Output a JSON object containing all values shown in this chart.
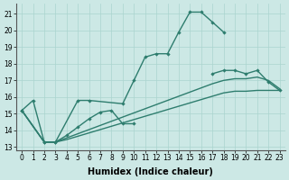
{
  "bg_color": "#cce8e5",
  "grid_color": "#aad4cf",
  "line_color": "#2e7d6e",
  "xlabel": "Humidex (Indice chaleur)",
  "xlim": [
    -0.5,
    23.5
  ],
  "ylim": [
    12.8,
    21.6
  ],
  "yticks": [
    13,
    14,
    15,
    16,
    17,
    18,
    19,
    20,
    21
  ],
  "xticks": [
    0,
    1,
    2,
    3,
    4,
    5,
    6,
    7,
    8,
    9,
    10,
    11,
    12,
    13,
    14,
    15,
    16,
    17,
    18,
    19,
    20,
    21,
    22,
    23
  ],
  "line1_x": [
    0,
    1,
    2,
    3,
    5,
    6,
    9,
    10,
    11,
    12,
    13,
    14,
    15,
    16,
    17,
    18
  ],
  "line1_y": [
    15.2,
    15.8,
    13.3,
    13.3,
    15.8,
    15.8,
    15.6,
    17.0,
    18.4,
    18.6,
    18.6,
    19.9,
    21.1,
    21.1,
    20.5,
    19.9
  ],
  "line2_x": [
    0,
    2,
    3,
    4,
    5,
    6,
    7,
    8,
    9,
    10
  ],
  "line2_y": [
    15.2,
    13.3,
    13.3,
    13.7,
    14.2,
    14.7,
    15.1,
    15.2,
    14.4,
    14.4
  ],
  "line3_x": [
    17,
    18,
    19,
    20,
    21,
    22,
    23
  ],
  "line3_y": [
    17.4,
    17.6,
    17.6,
    17.4,
    17.6,
    16.9,
    16.4
  ],
  "line4_x": [
    0,
    2,
    3,
    4,
    5,
    6,
    7,
    8,
    9,
    10,
    11,
    12,
    13,
    14,
    15,
    16,
    17,
    18,
    19,
    20,
    21,
    22,
    23
  ],
  "line4_y": [
    15.2,
    13.3,
    13.3,
    13.45,
    13.65,
    13.85,
    14.05,
    14.25,
    14.45,
    14.65,
    14.85,
    15.05,
    15.25,
    15.45,
    15.65,
    15.85,
    16.05,
    16.25,
    16.35,
    16.35,
    16.4,
    16.4,
    16.4
  ],
  "line5_x": [
    0,
    2,
    3,
    4,
    5,
    6,
    7,
    8,
    9,
    10,
    11,
    12,
    13,
    14,
    15,
    16,
    17,
    18,
    19,
    20,
    21,
    22,
    23
  ],
  "line5_y": [
    15.2,
    13.3,
    13.3,
    13.55,
    13.8,
    14.05,
    14.3,
    14.55,
    14.8,
    15.05,
    15.3,
    15.55,
    15.8,
    16.05,
    16.3,
    16.55,
    16.8,
    17.0,
    17.1,
    17.1,
    17.2,
    17.0,
    16.5
  ],
  "tick_fontsize": 5.5,
  "label_fontsize": 7,
  "linewidth": 1.0,
  "markersize": 2.2
}
